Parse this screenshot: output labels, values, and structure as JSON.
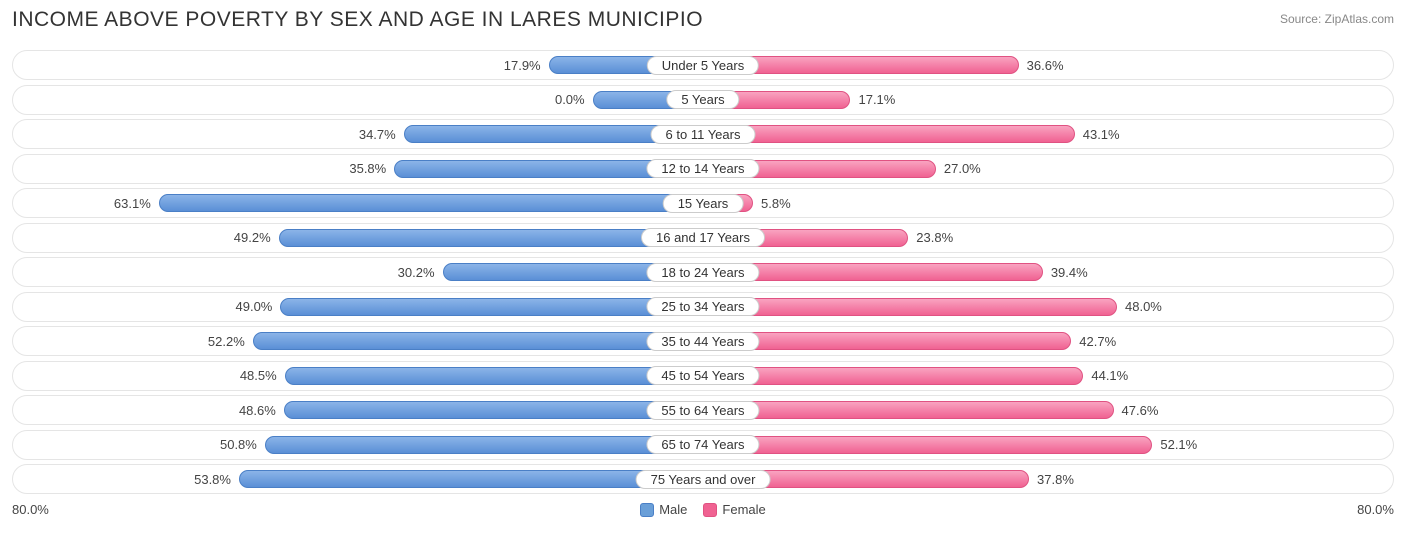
{
  "title": "INCOME ABOVE POVERTY BY SEX AND AGE IN LARES MUNICIPIO",
  "source": "Source: ZipAtlas.com",
  "axis_max_label": "80.0%",
  "axis_max": 80.0,
  "legend": {
    "male": "Male",
    "female": "Female"
  },
  "colors": {
    "male_fill": "#6a9fd8",
    "male_border": "#4a7fc6",
    "female_fill": "#f06292",
    "female_border": "#e05282",
    "row_border": "#e5e5e5",
    "text": "#444444",
    "title_text": "#333333",
    "source_text": "#888888",
    "background": "#ffffff"
  },
  "rows": [
    {
      "category": "Under 5 Years",
      "male": 17.9,
      "female": 36.6
    },
    {
      "category": "5 Years",
      "male": 0.0,
      "female": 17.1
    },
    {
      "category": "6 to 11 Years",
      "male": 34.7,
      "female": 43.1
    },
    {
      "category": "12 to 14 Years",
      "male": 35.8,
      "female": 27.0
    },
    {
      "category": "15 Years",
      "male": 63.1,
      "female": 5.8
    },
    {
      "category": "16 and 17 Years",
      "male": 49.2,
      "female": 23.8
    },
    {
      "category": "18 to 24 Years",
      "male": 30.2,
      "female": 39.4
    },
    {
      "category": "25 to 34 Years",
      "male": 49.0,
      "female": 48.0
    },
    {
      "category": "35 to 44 Years",
      "male": 52.2,
      "female": 42.7
    },
    {
      "category": "45 to 54 Years",
      "male": 48.5,
      "female": 44.1
    },
    {
      "category": "55 to 64 Years",
      "male": 48.6,
      "female": 47.6
    },
    {
      "category": "65 to 74 Years",
      "male": 50.8,
      "female": 52.1
    },
    {
      "category": "75 Years and over",
      "male": 53.8,
      "female": 37.8
    }
  ]
}
